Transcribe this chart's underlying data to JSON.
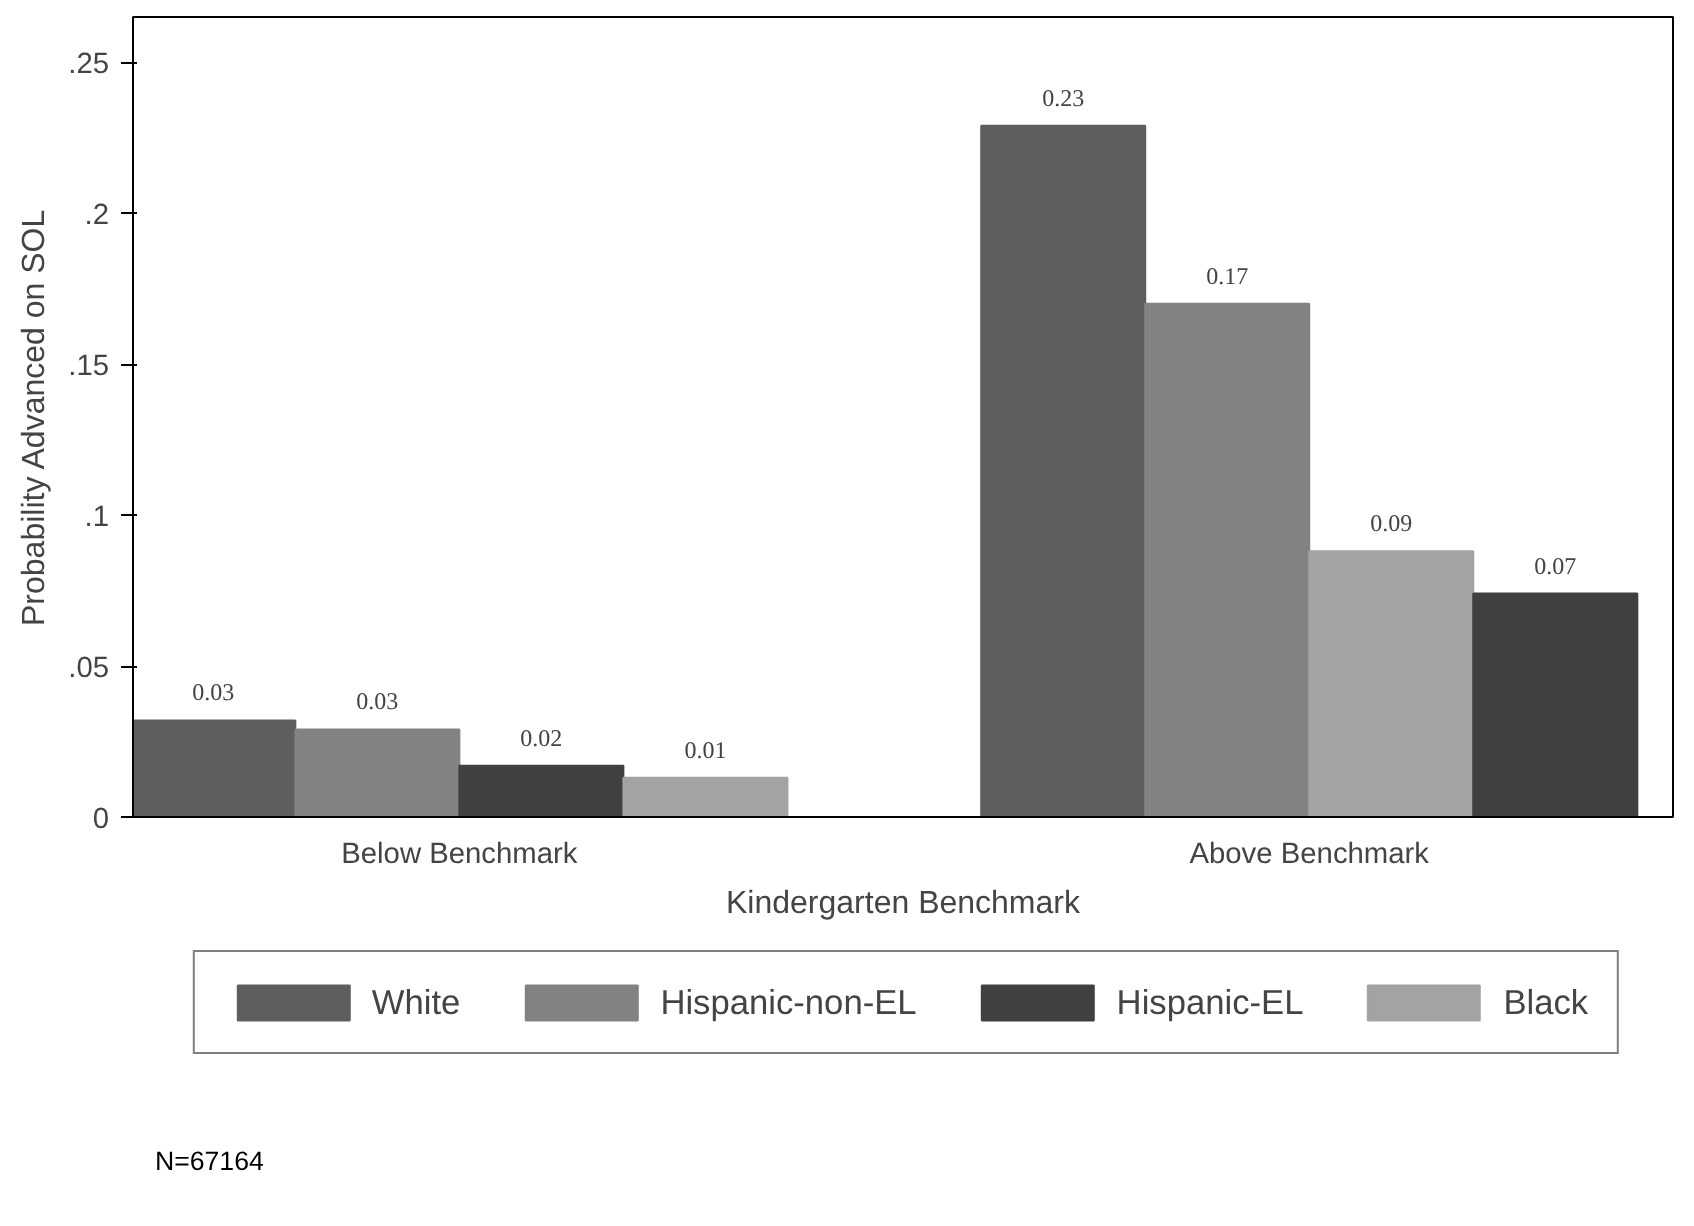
{
  "chart_data": {
    "type": "bar",
    "xlabel": "Kindergarten Benchmark",
    "ylabel": "Probability Advanced on SOL",
    "categories": [
      "Below Benchmark",
      "Above Benchmark"
    ],
    "series": [
      {
        "name": "White",
        "color": "#5e5e5e",
        "values": [
          0.032,
          0.229
        ],
        "value_labels": [
          "0.03",
          "0.23"
        ]
      },
      {
        "name": "Hispanic-non-EL",
        "color": "#828282",
        "values": [
          0.029,
          0.17
        ],
        "value_labels": [
          "0.03",
          "0.17"
        ]
      },
      {
        "name": "Hispanic-EL",
        "colors": [
          "#404040",
          "#a3a3a3"
        ],
        "values": [
          0.017,
          0.088
        ],
        "value_labels": [
          "0.02",
          "0.09"
        ]
      },
      {
        "name": "Black",
        "colors": [
          "#a3a3a3",
          "#404040"
        ],
        "values": [
          0.013,
          0.074
        ],
        "value_labels": [
          "0.01",
          "0.07"
        ]
      }
    ],
    "ylim": [
      0,
      0.265
    ],
    "yticks": [
      0,
      {
        "value": 0.05,
        "label": ".05"
      },
      {
        "value": 0.1,
        "label": ".1"
      },
      {
        "value": 0.15,
        "label": ".15"
      },
      {
        "value": 0.2,
        "label": ".2"
      },
      {
        "value": 0.25,
        "label": ".25"
      }
    ],
    "grid": false,
    "legend": "bottom",
    "annotations": [
      "N=67164"
    ]
  }
}
